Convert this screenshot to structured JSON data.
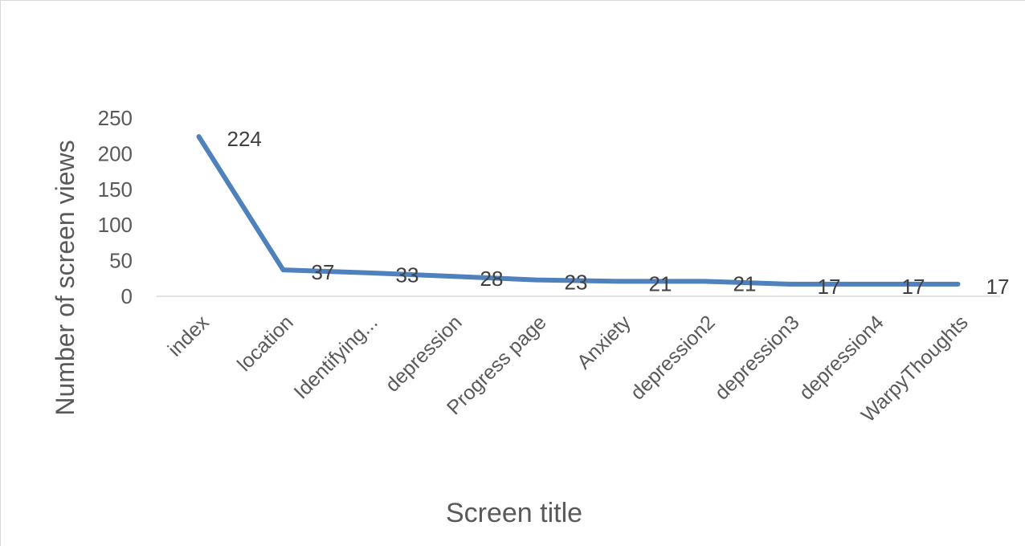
{
  "chart_data": {
    "type": "line",
    "title": "",
    "xlabel": "Screen title",
    "ylabel": "Number of screen views",
    "ylim": [
      0,
      250
    ],
    "yticks": [
      0,
      50,
      100,
      150,
      200,
      250
    ],
    "grid": false,
    "legend": "none",
    "categories": [
      "index",
      "location",
      "Identifying...",
      "depression",
      "Progress page",
      "Anxiety",
      "depression2",
      "depression3",
      "depression4",
      "WarpyThoughts"
    ],
    "series": [
      {
        "values": [
          224,
          37,
          33,
          28,
          23,
          21,
          21,
          17,
          17,
          17
        ],
        "color": "#4f81bd",
        "data_labels": [
          "224",
          "37",
          "33",
          "28",
          "23",
          "21",
          "21",
          "17",
          "17",
          "17"
        ]
      }
    ]
  }
}
